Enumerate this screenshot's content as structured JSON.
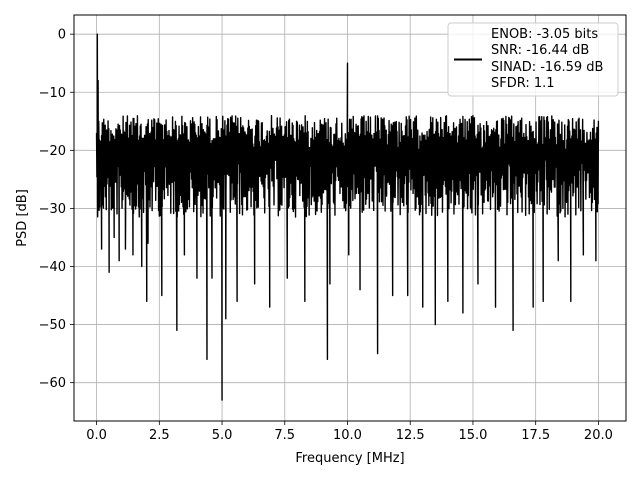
{
  "chart_data": {
    "type": "line",
    "title": "",
    "xlabel": "Frequency [MHz]",
    "ylabel": "PSD [dB]",
    "xlim": [
      -0.9,
      21.1
    ],
    "ylim": [
      -66.6,
      3.3
    ],
    "xticks": [
      0.0,
      2.5,
      5.0,
      7.5,
      10.0,
      12.5,
      15.0,
      17.5,
      20.0
    ],
    "xtick_labels": [
      "0.0",
      "2.5",
      "5.0",
      "7.5",
      "10.0",
      "12.5",
      "15.0",
      "17.5",
      "20.0"
    ],
    "yticks": [
      0,
      -10,
      -20,
      -30,
      -40,
      -50,
      -60
    ],
    "ytick_labels": [
      "0",
      "−10",
      "−20",
      "−30",
      "−40",
      "−50",
      "−60"
    ],
    "grid": true,
    "legend_position": "top-right",
    "legend_lines": [
      "ENOB: -3.05 bits",
      "SNR: -16.44 dB",
      "SINAD: -16.59 dB",
      "SFDR: 1.1"
    ],
    "series": [
      {
        "color": "#000000",
        "band_min": -29.5,
        "band_max": -14.0,
        "x": [
          0.0,
          0.03,
          0.06,
          0.1,
          0.2,
          0.35,
          0.5,
          0.7,
          0.9,
          1.15,
          1.45,
          1.8,
          2.0,
          2.05,
          2.6,
          3.2,
          3.5,
          4.0,
          4.4,
          4.6,
          5.0,
          5.15,
          5.6,
          6.3,
          6.9,
          7.6,
          8.3,
          9.2,
          9.3,
          10.0,
          10.05,
          10.5,
          11.2,
          11.8,
          12.4,
          13.0,
          13.5,
          14.0,
          14.6,
          15.2,
          15.9,
          16.6,
          17.4,
          17.8,
          18.4,
          18.9,
          19.4,
          19.9,
          20.0
        ],
        "y": [
          -17.0,
          0.0,
          -8.0,
          -20.0,
          -37.0,
          -28.0,
          -41.0,
          -35.0,
          -39.0,
          -37.0,
          -38.0,
          -40.0,
          -46.0,
          -36.0,
          -45.0,
          -51.0,
          -38.0,
          -42.0,
          -56.0,
          -42.0,
          -63.0,
          -49.0,
          -46.0,
          -43.0,
          -47.0,
          -42.0,
          -46.0,
          -56.0,
          -43.0,
          -5.0,
          -38.0,
          -44.0,
          -55.0,
          -45.0,
          -45.0,
          -47.0,
          -50.0,
          -46.0,
          -48.0,
          -43.0,
          -47.0,
          -51.0,
          -47.0,
          -46.0,
          -39.0,
          -46.0,
          -38.0,
          -39.0,
          -15.0
        ]
      }
    ]
  }
}
